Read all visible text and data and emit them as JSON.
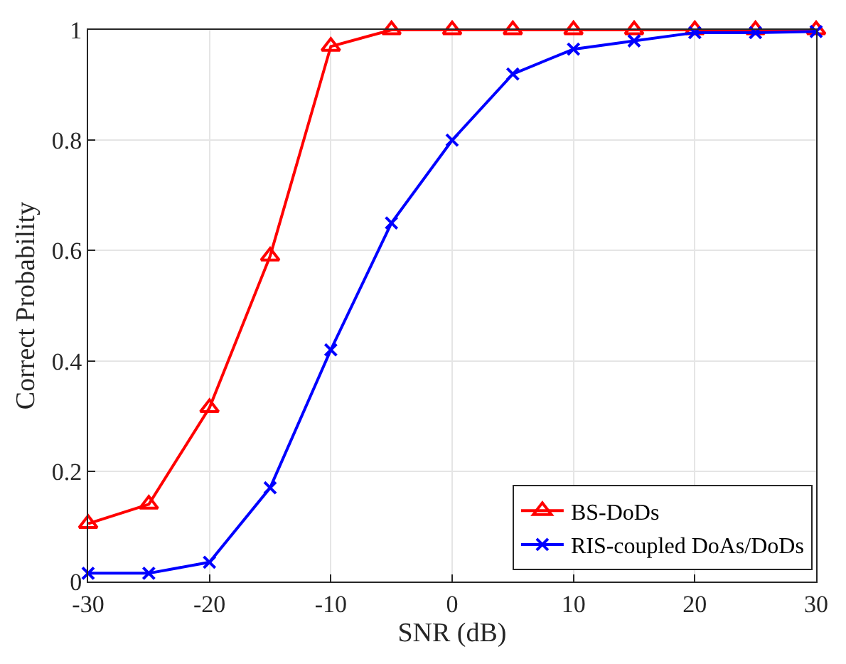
{
  "chart_data": {
    "type": "line",
    "xlabel": "SNR (dB)",
    "ylabel": "Correct Probability",
    "x": [
      -30,
      -25,
      -20,
      -15,
      -10,
      -5,
      0,
      5,
      10,
      15,
      20,
      25,
      30
    ],
    "series": [
      {
        "name": "BS-DoDs",
        "color": "#ff0000",
        "marker": "triangle",
        "values": [
          0.105,
          0.14,
          0.315,
          0.59,
          0.97,
          1,
          1,
          1,
          1,
          1,
          1,
          1,
          1
        ]
      },
      {
        "name": "RIS-coupled DoAs/DoDs",
        "color": "#0000ff",
        "marker": "cross",
        "values": [
          0.015,
          0.015,
          0.035,
          0.17,
          0.42,
          0.65,
          0.8,
          0.92,
          0.965,
          0.98,
          0.995,
          0.995,
          0.997
        ]
      }
    ],
    "xlim": [
      -30,
      30
    ],
    "xticks": [
      -30,
      -20,
      -10,
      0,
      10,
      20,
      30
    ],
    "ylim": [
      0,
      1
    ],
    "yticks": [
      0,
      0.2,
      0.4,
      0.6,
      0.8,
      1
    ],
    "grid": true,
    "legend": "bottom right",
    "line_style": "solid"
  }
}
